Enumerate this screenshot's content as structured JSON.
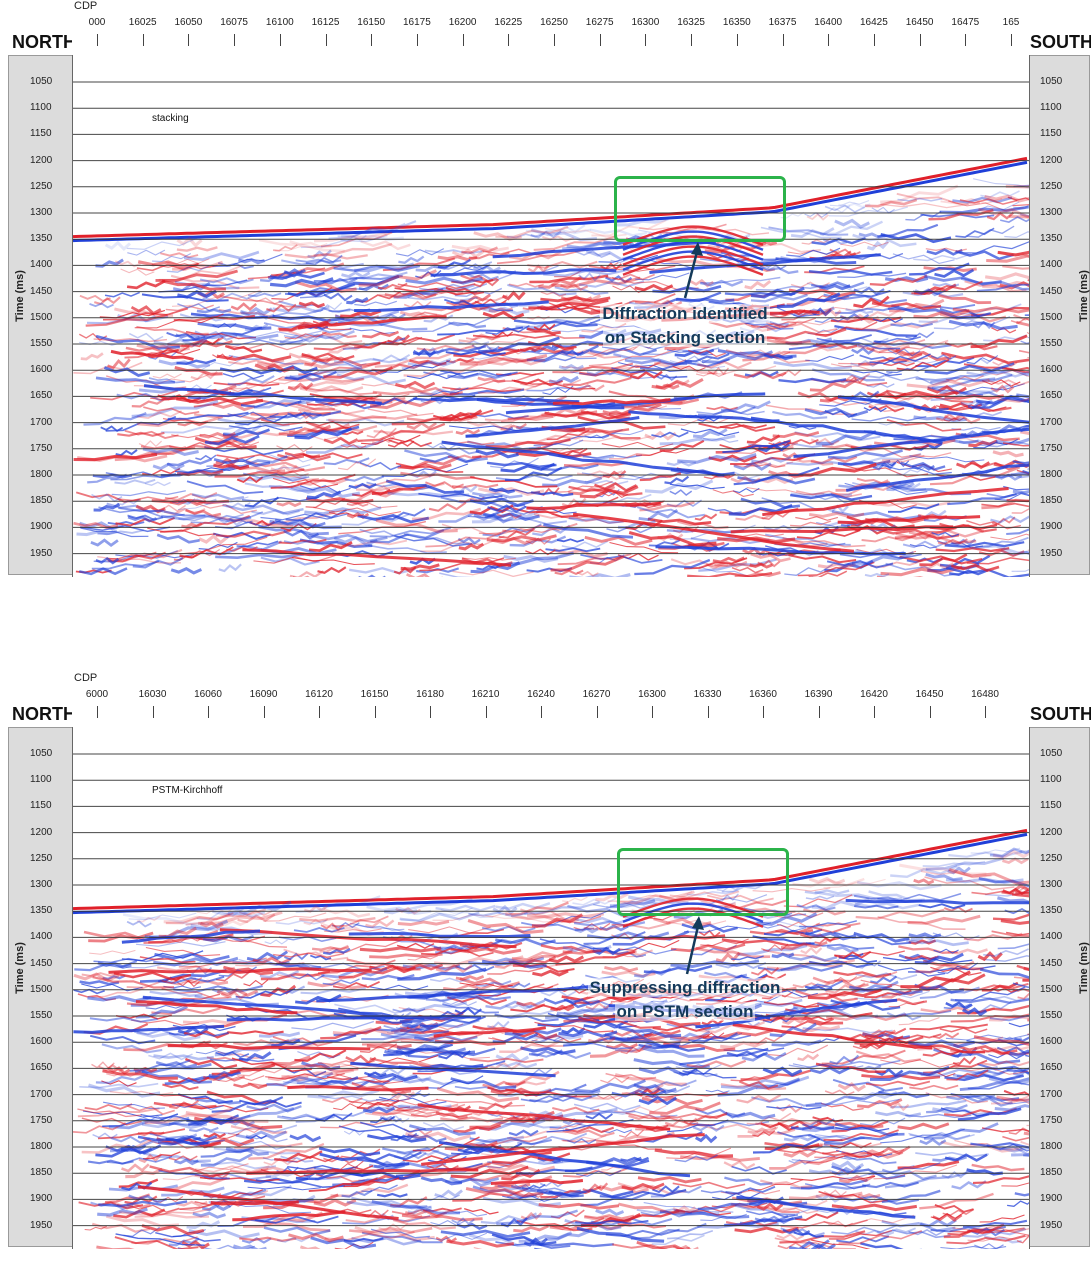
{
  "panels": [
    {
      "id": "top",
      "section_title": "stacking",
      "cdp_label": "CDP",
      "left_label": "NORTH",
      "right_label": "SOUTH",
      "y_axis_title": "Time (ms)",
      "x_ticks": [
        "000",
        "16025",
        "16050",
        "16075",
        "16100",
        "16125",
        "16150",
        "16175",
        "16200",
        "16225",
        "16250",
        "16275",
        "16300",
        "16325",
        "16350",
        "16375",
        "16400",
        "16425",
        "16450",
        "16475",
        "165"
      ],
      "y_ticks": [
        "1050",
        "1100",
        "1150",
        "1200",
        "1250",
        "1300",
        "1350",
        "1400",
        "1450",
        "1500",
        "1550",
        "1600",
        "1650",
        "1700",
        "1750",
        "1800",
        "1850",
        "1900",
        "1950"
      ],
      "annotation": [
        "Diffraction identified",
        "on Stacking section"
      ]
    },
    {
      "id": "bottom",
      "section_title": "PSTM-Kirchhoff",
      "cdp_label": "CDP",
      "left_label": "NORTH",
      "right_label": "SOUTH",
      "y_axis_title": "Time (ms)",
      "x_ticks": [
        "6000",
        "16030",
        "16060",
        "16090",
        "16120",
        "16150",
        "16180",
        "16210",
        "16240",
        "16270",
        "16300",
        "16330",
        "16360",
        "16390",
        "16420",
        "16450",
        "16480"
      ],
      "y_ticks": [
        "1050",
        "1100",
        "1150",
        "1200",
        "1250",
        "1300",
        "1350",
        "1400",
        "1450",
        "1500",
        "1550",
        "1600",
        "1650",
        "1700",
        "1750",
        "1800",
        "1850",
        "1900",
        "1950"
      ],
      "annotation": [
        "Suppressing diffraction",
        "on PSTM section"
      ]
    }
  ],
  "colors": {
    "positive_amplitude": "#e0202a",
    "negative_amplitude": "#1f3fd8",
    "highlight_box": "#2bb34a",
    "annotation_text": "#143a5a"
  }
}
